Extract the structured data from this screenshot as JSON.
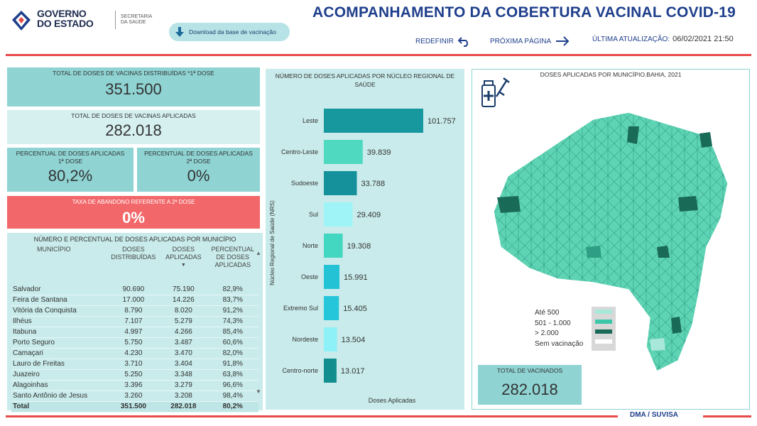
{
  "header": {
    "logo_line1": "GOVERNO",
    "logo_line2": "DO ESTADO",
    "secretaria_line1": "SECRETARIA",
    "secretaria_line2": "DA SAÚDE",
    "download_label": "Download da base de vacinação",
    "title": "ACOMPANHAMENTO DA COBERTURA VACINAL COVID-19",
    "redefinir": "REDEFINIR",
    "proxima": "PRÓXIMA PÁGINA",
    "ultima_label": "ÚLTIMA ATUALIZAÇÃO:",
    "ultima_value": "06/02/2021 21:50"
  },
  "kpis": {
    "distribuidas_label": "TOTAL DE DOSES DE VACINAS DISTRIBUÍDAS *1ª DOSE",
    "distribuidas_value": "351.500",
    "aplicadas_label": "TOTAL DE DOSES DE VACINAS APLICADAS",
    "aplicadas_value": "282.018",
    "pct1_label_a": "PERCENTUAL DE DOSES APLICADAS",
    "pct1_label_b": "1ª DOSE",
    "pct1_value": "80,2%",
    "pct2_label_a": "PERCENTUAL DE DOSES APLICADAS",
    "pct2_label_b": "2ª DOSE",
    "pct2_value": "0%",
    "abandono_label": "TAXA DE ABANDONO REFERENTE A 2ª DOSE",
    "abandono_value": "0%"
  },
  "table": {
    "title": "NÚMERO E PERCENTUAL DE DOSES APLICADAS POR MUNICÍPIO",
    "col_municipio": "MUNICÍPIO",
    "col_dist_a": "DOSES",
    "col_dist_b": "DISTRIBUÍDAS",
    "col_apl_a": "DOSES",
    "col_apl_b": "APLICADAS",
    "col_pct_a": "PERCENTUAL",
    "col_pct_b": "DE DOSES",
    "col_pct_c": "APLICADAS",
    "rows": [
      [
        "Salvador",
        "90.690",
        "75.190",
        "82,9%"
      ],
      [
        "Feira de Santana",
        "17.000",
        "14.226",
        "83,7%"
      ],
      [
        "Vitória da Conquista",
        "8.790",
        "8.020",
        "91,2%"
      ],
      [
        "Ilhéus",
        "7.107",
        "5.279",
        "74,3%"
      ],
      [
        "Itabuna",
        "4.997",
        "4.266",
        "85,4%"
      ],
      [
        "Porto Seguro",
        "5.750",
        "3.487",
        "60,6%"
      ],
      [
        "Camaçari",
        "4.230",
        "3.470",
        "82,0%"
      ],
      [
        "Lauro de Freitas",
        "3.710",
        "3.404",
        "91,8%"
      ],
      [
        "Juazeiro",
        "5.250",
        "3.348",
        "63,8%"
      ],
      [
        "Alagoinhas",
        "3.396",
        "3.279",
        "96,6%"
      ],
      [
        "Santo Antônio de Jesus",
        "3.260",
        "3.208",
        "98,4%"
      ]
    ],
    "total": [
      "Total",
      "351.500",
      "282.018",
      "80,2%"
    ]
  },
  "chart_data": {
    "type": "bar",
    "title": "NÚMERO DE DOSES APLICADAS POR NÚCLEO REGIONAL DE SAÚDE",
    "ylabel": "Núcleo Regional de Saúde (NRS)",
    "xlabel": "Doses Aplicadas",
    "categories": [
      "Leste",
      "Centro-Leste",
      "Sudoeste",
      "Sul",
      "Norte",
      "Oeste",
      "Extremo Sul",
      "Nordeste",
      "Centro-norte"
    ],
    "values": [
      101757,
      39839,
      33788,
      29409,
      19308,
      15991,
      15405,
      13504,
      13017
    ],
    "value_labels": [
      "101.757",
      "39.839",
      "33.788",
      "29.409",
      "19.308",
      "15.991",
      "15.405",
      "13.504",
      "13.017"
    ],
    "colors": [
      "#17979e",
      "#4fd9c0",
      "#14919a",
      "#9ff4f7",
      "#43d6c0",
      "#23c2d4",
      "#25c6da",
      "#8ef1f7",
      "#138e8e"
    ]
  },
  "map": {
    "title": "DOSES APLICADAS POR MUNICÍPIO.BAHIA, 2021",
    "legend": [
      "Até 500",
      "501 - 1.000",
      "> 2.000",
      "Sem vacinação"
    ],
    "legend_colors": [
      "#a8e8d8",
      "#3cc8a8",
      "#1a6a58",
      "#ffffff"
    ],
    "total_label": "TOTAL DE VACINADOS",
    "total_value": "282.018"
  },
  "footer": "DMA / SUVISA"
}
